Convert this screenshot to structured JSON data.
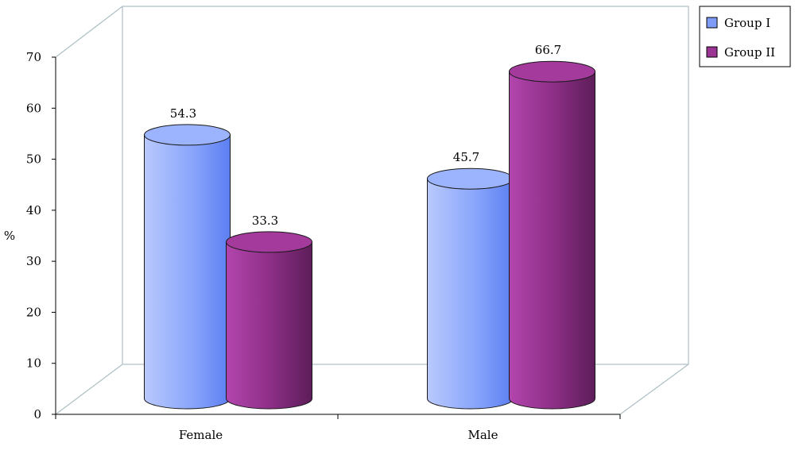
{
  "chart_data": {
    "type": "bar",
    "title": "",
    "xlabel": "",
    "ylabel": "%",
    "ylim": [
      0,
      70
    ],
    "yticks": [
      0,
      10,
      20,
      30,
      40,
      50,
      60,
      70
    ],
    "categories": [
      "Female",
      "Male"
    ],
    "series": [
      {
        "name": "Group I",
        "values": [
          54.3,
          45.7
        ],
        "color": "#7f9bf8"
      },
      {
        "name": "Group II",
        "values": [
          33.3,
          66.7
        ],
        "color": "#9a3593"
      }
    ],
    "grid": false,
    "legend": "top-right",
    "style": "3d-cylinder"
  }
}
